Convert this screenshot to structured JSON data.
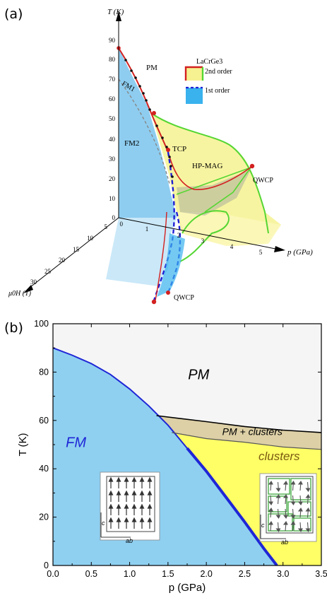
{
  "panel_a": {
    "label": "(a)",
    "t_axis_label": "T (K)",
    "p_axis_label": "p (GPa)",
    "h_axis_label": "μ0H (T)",
    "t_ticks": [
      "0",
      "10",
      "20",
      "30",
      "40",
      "50",
      "60",
      "70",
      "80",
      "90"
    ],
    "p_ticks": [
      "1",
      "2",
      "3",
      "4",
      "5"
    ],
    "h_ticks": [
      "0",
      "5",
      "10",
      "15",
      "20",
      "25",
      "30"
    ],
    "region_labels": {
      "pm": "PM",
      "fm1": "FM1",
      "fm2": "FM2",
      "tcp": "TCP",
      "hp_mag": "HP-MAG",
      "qwcp_top": "QWCP",
      "qwcp_bottom": "QWCP"
    },
    "legend": {
      "compound": "LaCrGe3",
      "second_order": "2nd order",
      "first_order": "1st order"
    },
    "colors": {
      "fm": "#8ecdf0",
      "hp": "#f6f291",
      "second_order_line": "#55d633",
      "first_order_line": "#1f1fd6",
      "red": "#d32020"
    }
  },
  "panel_b": {
    "label": "(b)",
    "colors": {
      "pm": "#f5f5f5",
      "fm": "#8fd0f1",
      "clusters": "#ffff66",
      "pm_clusters": "#ddd0a6",
      "fm_boundary": "#1f26d6"
    },
    "inset_labels": {
      "c_axis": "c",
      "ab_axis": "ab"
    }
  },
  "chart_data": {
    "type": "area",
    "title": "",
    "xlabel": "p (GPa)",
    "ylabel": "T (K)",
    "xlim": [
      0,
      3.5
    ],
    "ylim": [
      0,
      100
    ],
    "x_ticks": [
      "0.0",
      "0.5",
      "1.0",
      "1.5",
      "2.0",
      "2.5",
      "3.0",
      "3.5"
    ],
    "y_ticks": [
      "0",
      "20",
      "40",
      "60",
      "80",
      "100"
    ],
    "grid": false,
    "series": [
      {
        "name": "FM",
        "points": [
          [
            0,
            90
          ],
          [
            0.25,
            87
          ],
          [
            0.5,
            83.5
          ],
          [
            0.75,
            79
          ],
          [
            1.0,
            73
          ],
          [
            1.25,
            66
          ],
          [
            1.5,
            58
          ],
          [
            1.75,
            48.5
          ],
          [
            2.0,
            39
          ],
          [
            2.25,
            28.5
          ],
          [
            2.5,
            18
          ],
          [
            2.75,
            7
          ],
          [
            2.92,
            0
          ]
        ]
      },
      {
        "name": "PM + clusters",
        "upper": [
          [
            1.35,
            62
          ],
          [
            2.0,
            59.5
          ],
          [
            2.5,
            57.5
          ],
          [
            3.0,
            56
          ],
          [
            3.5,
            55
          ]
        ],
        "lower": [
          [
            1.55,
            55
          ],
          [
            2.0,
            52.5
          ],
          [
            2.5,
            51
          ],
          [
            3.0,
            49
          ],
          [
            3.5,
            48
          ]
        ]
      },
      {
        "name": "clusters",
        "points": [
          [
            1.55,
            55
          ],
          [
            2.0,
            52.5
          ],
          [
            2.5,
            51
          ],
          [
            3.0,
            49
          ],
          [
            3.5,
            48
          ]
        ]
      },
      {
        "name": "PM",
        "points": []
      }
    ],
    "annotations": [
      "PM",
      "PM + clusters",
      "clusters",
      "FM"
    ]
  }
}
